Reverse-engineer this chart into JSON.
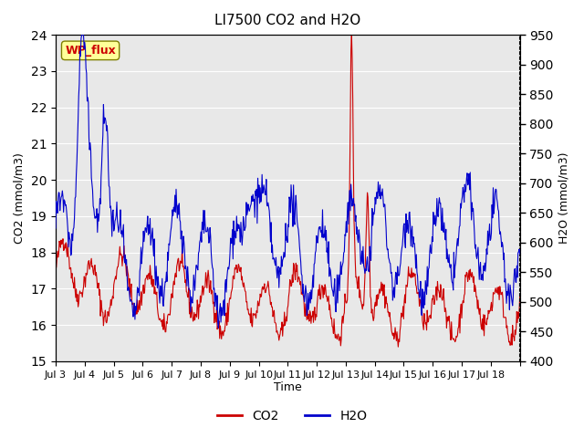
{
  "title": "LI7500 CO2 and H2O",
  "xlabel": "Time",
  "ylabel_left": "CO2 (mmol/m3)",
  "ylabel_right": "H2O (mmol/m3)",
  "site_label": "WP_flux",
  "ylim_left": [
    15.0,
    24.0
  ],
  "ylim_right": [
    400,
    950
  ],
  "yticks_left": [
    15.0,
    16.0,
    17.0,
    18.0,
    19.0,
    20.0,
    21.0,
    22.0,
    23.0,
    24.0
  ],
  "yticks_right": [
    400,
    450,
    500,
    550,
    600,
    650,
    700,
    750,
    800,
    850,
    900,
    950
  ],
  "xtick_labels": [
    "Jul 3",
    "Jul 4",
    "Jul 5",
    "Jul 6",
    "Jul 7",
    "Jul 8",
    "Jul 9",
    "Jul 10",
    "Jul 11",
    "Jul 12",
    "Jul 13",
    "Jul 14",
    "Jul 15",
    "Jul 16",
    "Jul 17",
    "Jul 18"
  ],
  "n_days": 16,
  "co2_color": "#cc0000",
  "h2o_color": "#0000cc",
  "legend_co2": "CO2",
  "legend_h2o": "H2O",
  "background_color": "#ffffff",
  "plot_bg_color": "#e8e8e8",
  "grid_color": "#ffffff",
  "site_box_facecolor": "#ffff99",
  "site_box_edgecolor": "#808000",
  "site_text_color": "#cc0000"
}
